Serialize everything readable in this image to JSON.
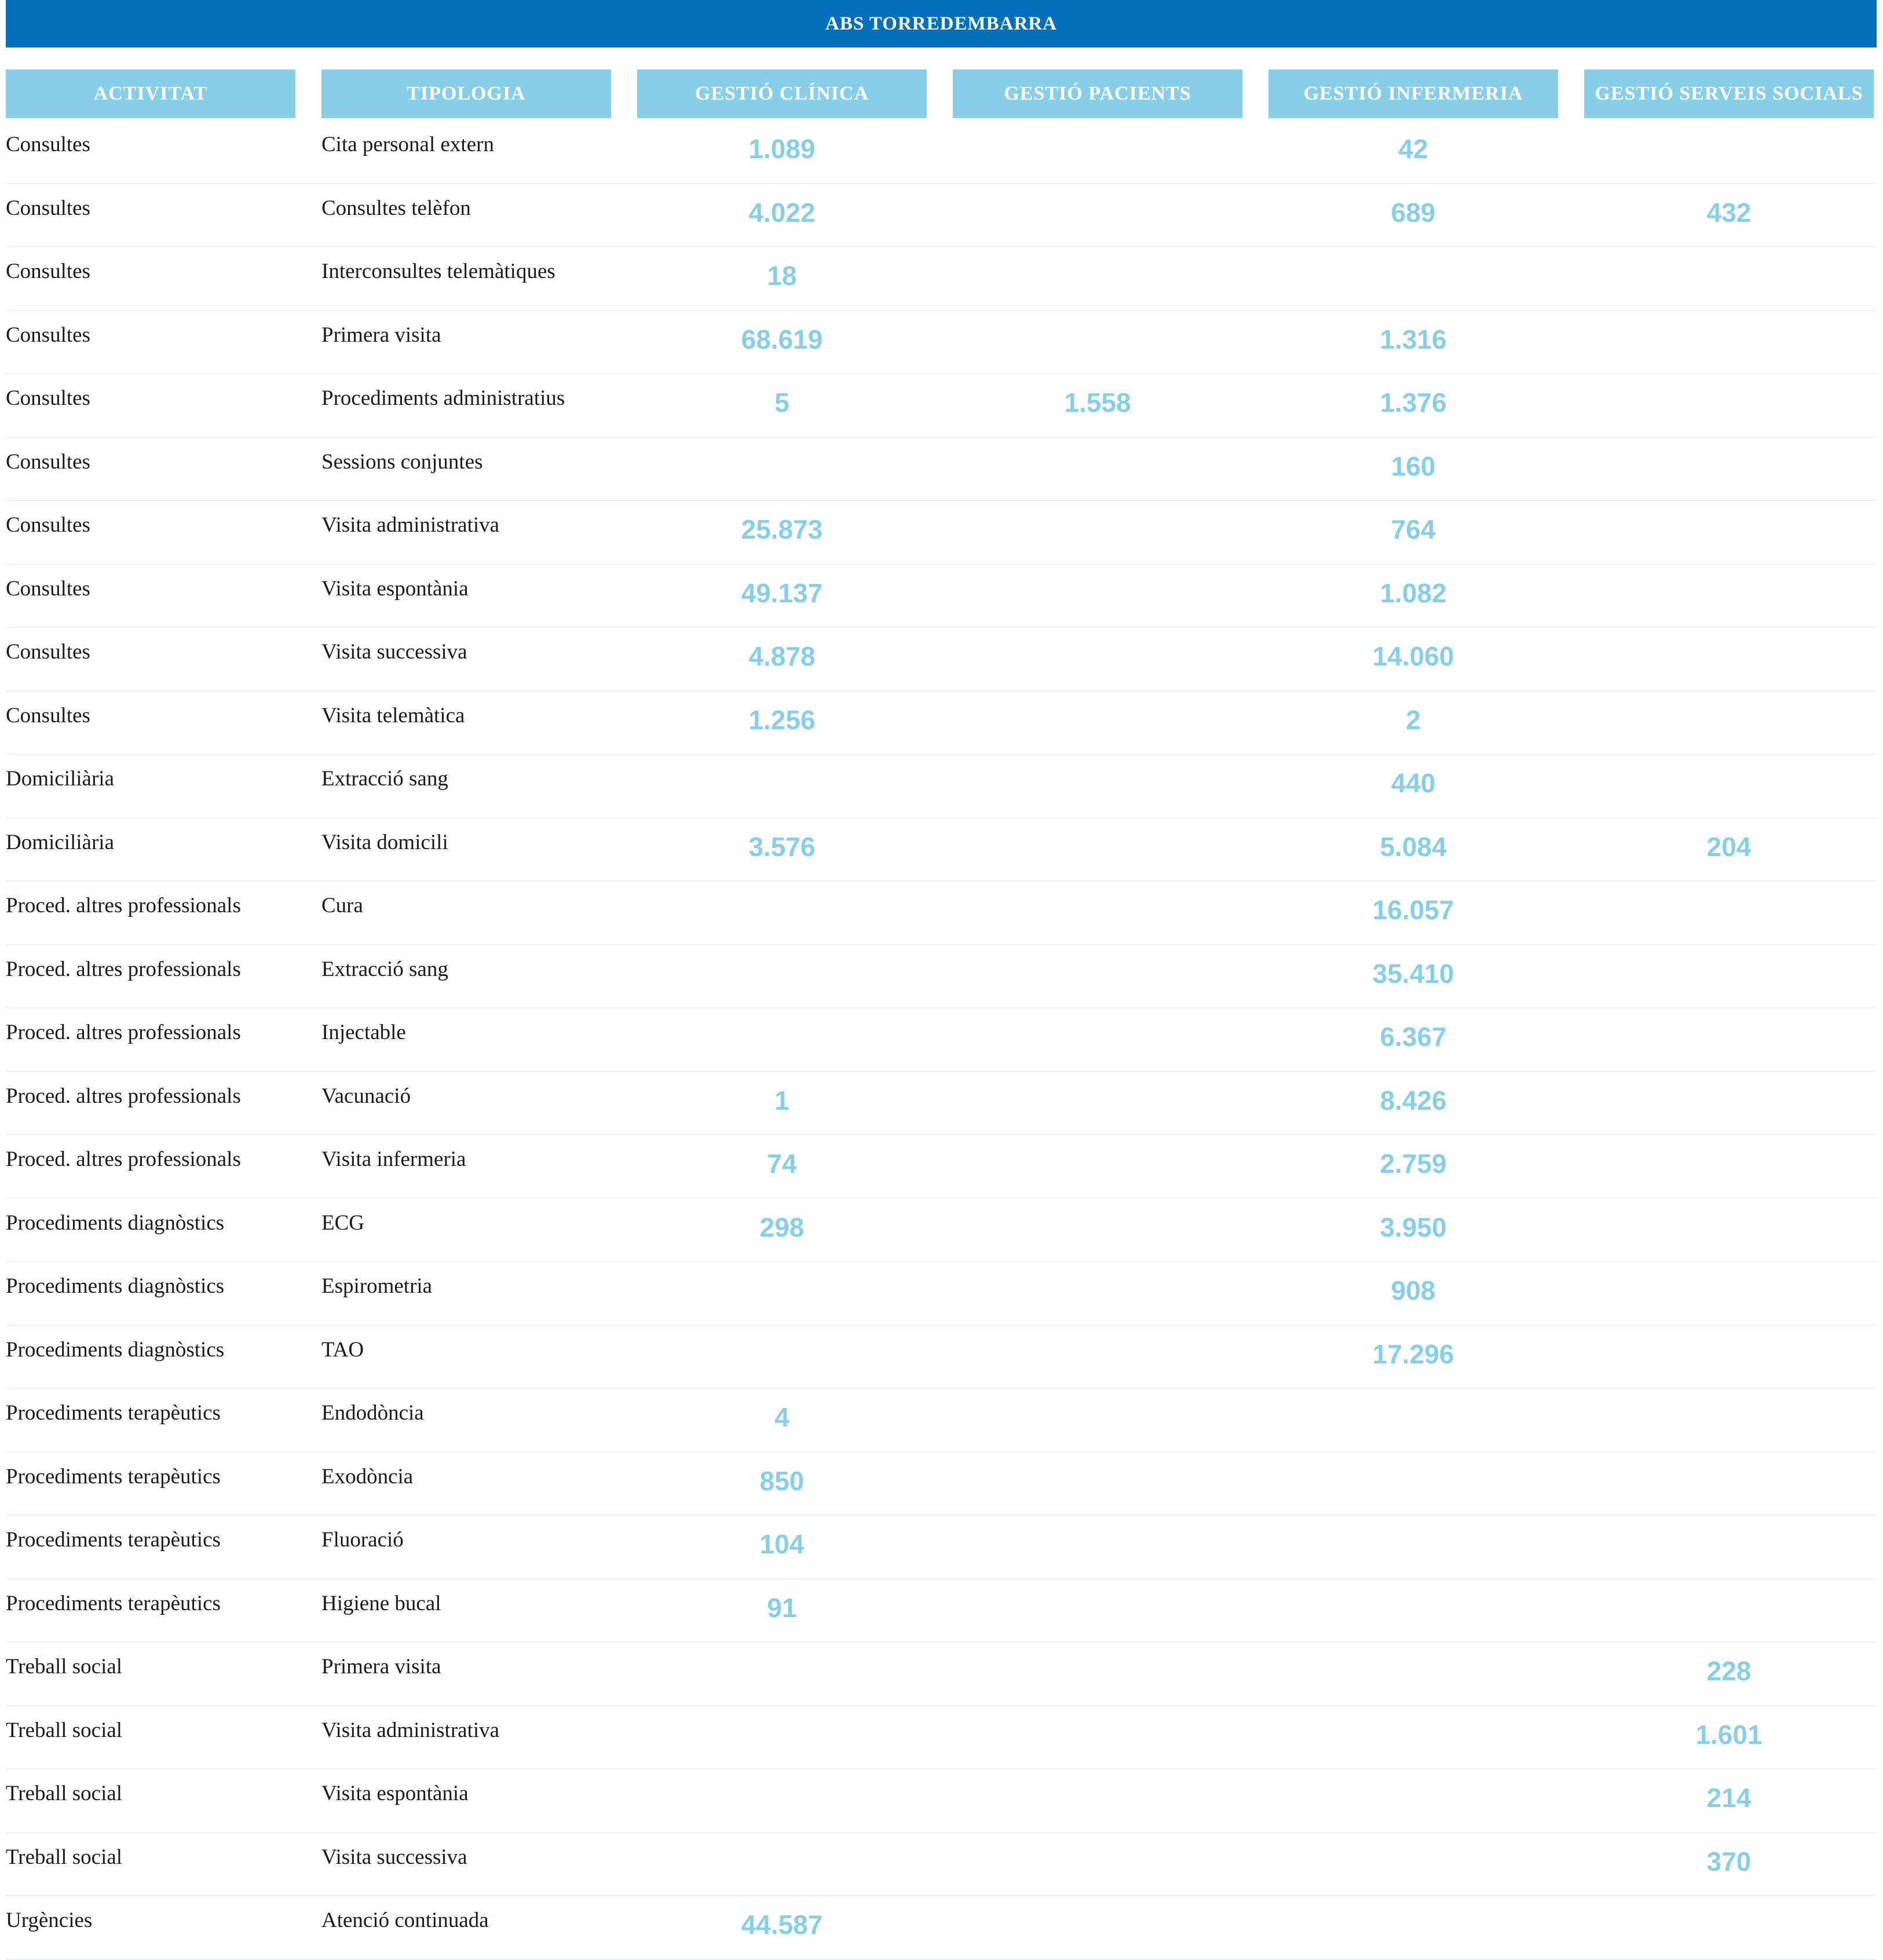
{
  "title": "ABS TORREDEMBARRA",
  "columns": [
    "ACTIVITAT",
    "TIPOLOGIA",
    "GESTIÓ CLÍNICA",
    "GESTIÓ PACIENTS",
    "GESTIÓ INFERMERIA",
    "GESTIÓ SERVEIS SOCIALS"
  ],
  "colors": {
    "title_bg": "#0070ba",
    "header_bg": "#86cfe7",
    "value_text": "#86cfe7"
  },
  "rows": [
    [
      "Consultes",
      "Cita personal extern",
      "1.089",
      "",
      "42",
      ""
    ],
    [
      "Consultes",
      "Consultes telèfon",
      "4.022",
      "",
      "689",
      "432"
    ],
    [
      "Consultes",
      "Interconsultes telemàtiques",
      "18",
      "",
      "",
      ""
    ],
    [
      "Consultes",
      "Primera visita",
      "68.619",
      "",
      "1.316",
      ""
    ],
    [
      "Consultes",
      "Procediments administratius",
      "5",
      "1.558",
      "1.376",
      ""
    ],
    [
      "Consultes",
      "Sessions conjuntes",
      "",
      "",
      "160",
      ""
    ],
    [
      "Consultes",
      "Visita administrativa",
      "25.873",
      "",
      "764",
      ""
    ],
    [
      "Consultes",
      "Visita espontània",
      "49.137",
      "",
      "1.082",
      ""
    ],
    [
      "Consultes",
      "Visita successiva",
      "4.878",
      "",
      "14.060",
      ""
    ],
    [
      "Consultes",
      "Visita telemàtica",
      "1.256",
      "",
      "2",
      ""
    ],
    [
      "Domiciliària",
      "Extracció sang",
      "",
      "",
      "440",
      ""
    ],
    [
      "Domiciliària",
      "Visita domicili",
      "3.576",
      "",
      "5.084",
      "204"
    ],
    [
      "Proced. altres professionals",
      "Cura",
      "",
      "",
      "16.057",
      ""
    ],
    [
      "Proced. altres professionals",
      "Extracció sang",
      "",
      "",
      "35.410",
      ""
    ],
    [
      "Proced. altres professionals",
      "Injectable",
      "",
      "",
      "6.367",
      ""
    ],
    [
      "Proced. altres professionals",
      "Vacunació",
      "1",
      "",
      "8.426",
      ""
    ],
    [
      "Proced. altres professionals",
      "Visita infermeria",
      "74",
      "",
      "2.759",
      ""
    ],
    [
      "Procediments diagnòstics",
      "ECG",
      "298",
      "",
      "3.950",
      ""
    ],
    [
      "Procediments diagnòstics",
      "Espirometria",
      "",
      "",
      "908",
      ""
    ],
    [
      "Procediments diagnòstics",
      "TAO",
      "",
      "",
      "17.296",
      ""
    ],
    [
      "Procediments terapèutics",
      "Endodòncia",
      "4",
      "",
      "",
      ""
    ],
    [
      "Procediments terapèutics",
      "Exodòncia",
      "850",
      "",
      "",
      ""
    ],
    [
      "Procediments terapèutics",
      "Fluoració",
      "104",
      "",
      "",
      ""
    ],
    [
      "Procediments terapèutics",
      "Higiene bucal",
      "91",
      "",
      "",
      ""
    ],
    [
      "Treball social",
      "Primera visita",
      "",
      "",
      "",
      "228"
    ],
    [
      "Treball social",
      "Visita administrativa",
      "",
      "",
      "",
      "1.601"
    ],
    [
      "Treball social",
      "Visita espontània",
      "",
      "",
      "",
      "214"
    ],
    [
      "Treball social",
      "Visita successiva",
      "",
      "",
      "",
      "370"
    ],
    [
      "Urgències",
      "Atenció continuada",
      "44.587",
      "",
      "",
      ""
    ]
  ]
}
